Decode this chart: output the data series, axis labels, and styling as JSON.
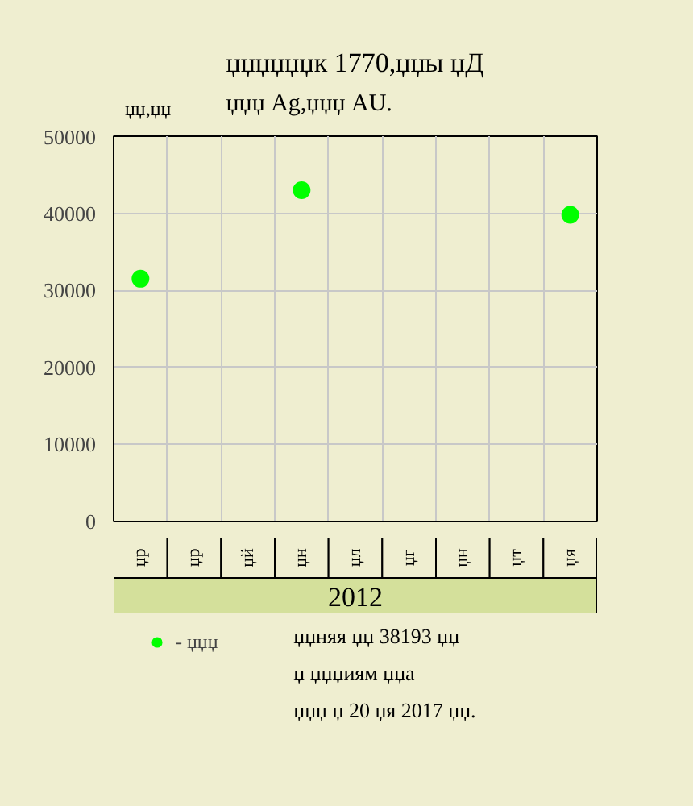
{
  "chart_data": {
    "type": "scatter",
    "title": "џџџџџџк 1770,џџы џД",
    "subtitle": "џџџ Ag,џџџ AU.",
    "ylabel": "џџ,џџ",
    "xlabel": "2012",
    "categories": [
      "џр",
      "џр",
      "џй",
      "џн",
      "џл",
      "џг",
      "џн",
      "џт",
      "џя"
    ],
    "series": [
      {
        "name": "- џџџ",
        "color": "#00ff00",
        "values": [
          31500,
          null,
          null,
          43000,
          null,
          null,
          null,
          null,
          39800
        ]
      }
    ],
    "ylim": [
      0,
      50000
    ],
    "yticks": [
      0,
      10000,
      20000,
      30000,
      40000,
      50000
    ],
    "grid": true,
    "legend": "bottom",
    "marker": "circle",
    "annotations": [
      "џџняя џџ 38193 џџ",
      "џ џџџиям џџа",
      "џџџ џ 20 џя 2017 џџ."
    ]
  }
}
